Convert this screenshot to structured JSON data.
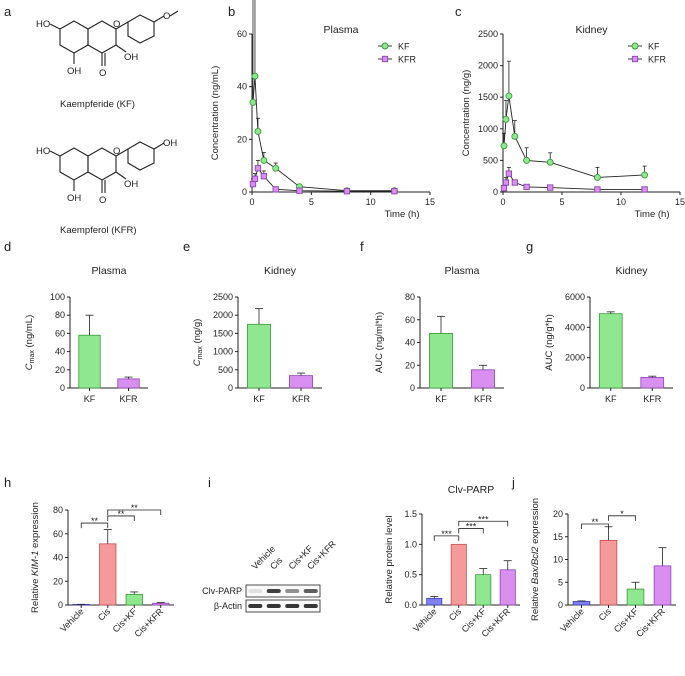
{
  "panels": {
    "a": "a",
    "b": "b",
    "c": "c",
    "d": "d",
    "e": "e",
    "f": "f",
    "g": "g",
    "h": "h",
    "i": "i",
    "j": "j"
  },
  "structures": {
    "kf_caption": "Kaempferide (KF)",
    "kfr_caption": "Kaempferol (KFR)",
    "atoms": {
      "HO": "HO",
      "OH": "OH",
      "O": "O"
    }
  },
  "colors": {
    "kf": "#8fe88f",
    "kf_edge": "#3a9a3a",
    "kfr": "#d98ff0",
    "kfr_edge": "#8a44b0",
    "vehicle": "#8080f0",
    "cis": "#f59a9a",
    "line": "#222"
  },
  "western": {
    "lanes": [
      "Vehicle",
      "Cis",
      "Cis+KF",
      "Cis+KFR"
    ],
    "rows": [
      "Clv-PARP",
      "β-Actin"
    ],
    "band_intensity": {
      "clv_parp": [
        0.05,
        0.85,
        0.45,
        0.7
      ],
      "actin": [
        0.9,
        0.9,
        0.9,
        0.9
      ]
    }
  },
  "chart_data": [
    {
      "id": "b",
      "type": "line",
      "title": "Plasma",
      "xlabel": "Time (h)",
      "ylabel": "Concentration (ng/mL)",
      "xlim": [
        0,
        15
      ],
      "ylim": [
        0,
        60
      ],
      "xticks": [
        0,
        5,
        10,
        15
      ],
      "yticks": [
        0,
        20,
        40,
        60
      ],
      "legend": "top-right",
      "series": [
        {
          "name": "KF",
          "x": [
            0.083,
            0.25,
            0.5,
            1,
            2,
            4,
            8,
            12
          ],
          "y": [
            34,
            44,
            23,
            12,
            9,
            2,
            0.5,
            0.5
          ],
          "err": [
            40,
            30,
            5,
            3,
            2,
            0.5,
            0.2,
            0.2
          ]
        },
        {
          "name": "KFR",
          "x": [
            0.083,
            0.25,
            0.5,
            1,
            2,
            4,
            8,
            12
          ],
          "y": [
            3,
            5,
            9,
            6,
            1,
            0.5,
            0.3,
            0.3
          ],
          "err": [
            2,
            2,
            3,
            2,
            0.5,
            0.2,
            0.1,
            0.1
          ]
        }
      ]
    },
    {
      "id": "c",
      "type": "line",
      "title": "Kidney",
      "xlabel": "Time (h)",
      "ylabel": "Concentration (ng/g)",
      "xlim": [
        0,
        15
      ],
      "ylim": [
        0,
        2500
      ],
      "xticks": [
        0,
        5,
        10,
        15
      ],
      "yticks": [
        0,
        500,
        1000,
        1500,
        2000,
        2500
      ],
      "legend": "top-right",
      "series": [
        {
          "name": "KF",
          "x": [
            0.083,
            0.25,
            0.5,
            1,
            2,
            4,
            8,
            12
          ],
          "y": [
            730,
            1150,
            1520,
            880,
            500,
            470,
            230,
            270
          ],
          "err": [
            200,
            300,
            550,
            250,
            200,
            150,
            160,
            140
          ]
        },
        {
          "name": "KFR",
          "x": [
            0.083,
            0.25,
            0.5,
            1,
            2,
            4,
            8,
            12
          ],
          "y": [
            60,
            150,
            290,
            150,
            80,
            70,
            40,
            40
          ],
          "err": [
            30,
            80,
            100,
            40,
            20,
            20,
            10,
            10
          ]
        }
      ]
    },
    {
      "id": "d",
      "type": "bar",
      "title": "Plasma",
      "ylabel": "C_max (ng/mL)",
      "ylabel_main": "C",
      "ylabel_sub": "max",
      "ylabel_rest": " (ng/mL)",
      "categories": [
        "KF",
        "KFR"
      ],
      "values": [
        58,
        10
      ],
      "err": [
        22,
        2
      ],
      "ylim": [
        0,
        100
      ],
      "yticks": [
        0,
        20,
        40,
        60,
        80,
        100
      ]
    },
    {
      "id": "e",
      "type": "bar",
      "title": "Kidney",
      "ylabel": "C_max (ng/g)",
      "ylabel_main": "C",
      "ylabel_sub": "max",
      "ylabel_rest": " (ng/g)",
      "categories": [
        "KF",
        "KFR"
      ],
      "values": [
        1750,
        340
      ],
      "err": [
        430,
        70
      ],
      "ylim": [
        0,
        2500
      ],
      "yticks": [
        0,
        500,
        1000,
        1500,
        2000,
        2500
      ]
    },
    {
      "id": "f",
      "type": "bar",
      "title": "Plasma",
      "ylabel": "AUC (ng/ml*h)",
      "categories": [
        "KF",
        "KFR"
      ],
      "values": [
        48,
        16
      ],
      "err": [
        15,
        4
      ],
      "ylim": [
        0,
        80
      ],
      "yticks": [
        0,
        20,
        40,
        60,
        80
      ]
    },
    {
      "id": "g",
      "type": "bar",
      "title": "Kidney",
      "ylabel": "AUC (ng/g*h)",
      "categories": [
        "KF",
        "KFR"
      ],
      "values": [
        4900,
        700
      ],
      "err": [
        120,
        80
      ],
      "ylim": [
        0,
        6000
      ],
      "yticks": [
        0,
        2000,
        4000,
        6000
      ]
    },
    {
      "id": "h",
      "type": "bar",
      "title": "",
      "ylabel": "Relative KIM-1 expression",
      "ylabel_pre": "Relative ",
      "ylabel_it": "KIM-1",
      "ylabel_post": " expression",
      "categories": [
        "Vehicle",
        "Cis",
        "Cis+KF",
        "Cis+KFR"
      ],
      "values": [
        0.5,
        51.5,
        9,
        1.5
      ],
      "err": [
        0.1,
        12,
        2,
        0.5
      ],
      "ylim": [
        0,
        80
      ],
      "yticks": [
        0,
        20,
        40,
        60,
        80
      ],
      "sig": [
        {
          "a": 0,
          "b": 1,
          "label": "**",
          "y": 69
        },
        {
          "a": 1,
          "b": 2,
          "label": "**",
          "y": 75
        },
        {
          "a": 1,
          "b": 3,
          "label": "**",
          "y": 80
        }
      ]
    },
    {
      "id": "i",
      "type": "bar",
      "title": "Clv-PARP",
      "ylabel": "Relative protein level",
      "categories": [
        "Vehicle",
        "Cis",
        "Cis+KF",
        "Cis+KFR"
      ],
      "values": [
        0.11,
        1.0,
        0.5,
        0.58
      ],
      "err": [
        0.03,
        0,
        0.1,
        0.15
      ],
      "ylim": [
        0,
        1.5
      ],
      "yticks": [
        0.0,
        0.5,
        1.0,
        1.5
      ],
      "sig": [
        {
          "a": 0,
          "b": 1,
          "label": "***",
          "y": 1.14
        },
        {
          "a": 1,
          "b": 2,
          "label": "***",
          "y": 1.26
        },
        {
          "a": 1,
          "b": 3,
          "label": "***",
          "y": 1.38
        }
      ]
    },
    {
      "id": "j",
      "type": "bar",
      "title": "",
      "ylabel": "Relative Bax/Bcl2 expression",
      "ylabel_pre": "Relative ",
      "ylabel_it": "Bax/Bcl2",
      "ylabel_post": " expression",
      "categories": [
        "Vehicle",
        "Cis",
        "Cis+KF",
        "Cis+KFR"
      ],
      "values": [
        0.8,
        14.2,
        3.5,
        8.6
      ],
      "err": [
        0.1,
        3,
        1.5,
        4
      ],
      "ylim": [
        0,
        20
      ],
      "yticks": [
        0,
        5,
        10,
        15,
        20
      ],
      "sig": [
        {
          "a": 0,
          "b": 1,
          "label": "**",
          "y": 17.8
        },
        {
          "a": 1,
          "b": 2,
          "label": "*",
          "y": 19.6
        }
      ]
    }
  ]
}
